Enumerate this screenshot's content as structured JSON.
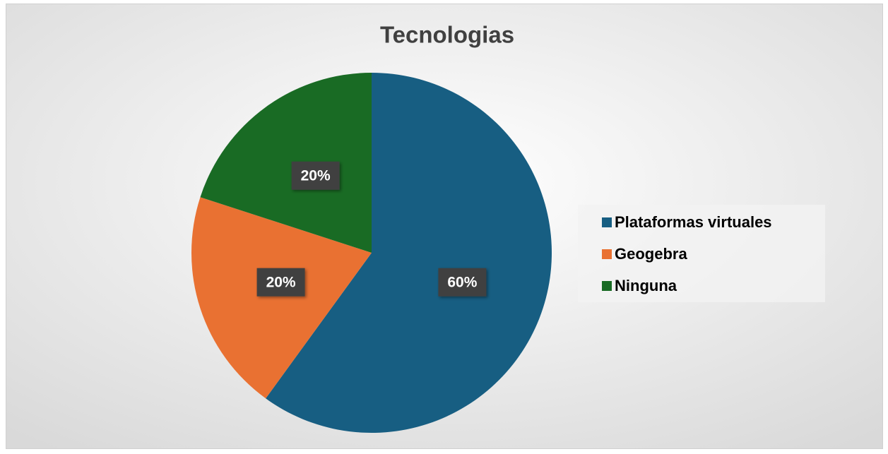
{
  "chart_data": {
    "type": "pie",
    "title": "Tecnologias",
    "categories": [
      "Plataformas virtuales",
      "Geogebra",
      "Ninguna"
    ],
    "values": [
      60,
      20,
      20
    ],
    "value_labels": [
      "60%",
      "20%",
      "20%"
    ],
    "colors": [
      "#175e82",
      "#e97132",
      "#196b24"
    ],
    "legend": "right"
  }
}
